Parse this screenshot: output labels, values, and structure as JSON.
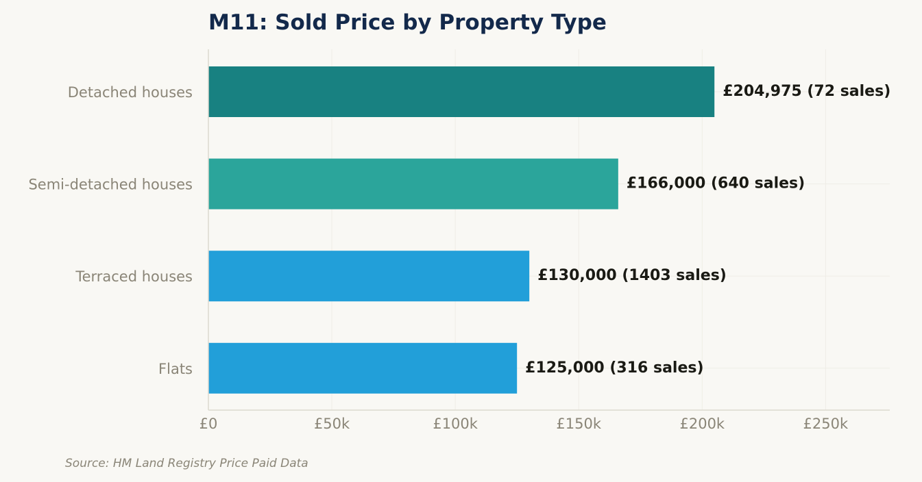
{
  "chart_data": {
    "type": "bar",
    "orientation": "horizontal",
    "title": "M11: Sold Price by Property Type",
    "xlabel": "",
    "ylabel": "",
    "categories": [
      "Detached houses",
      "Semi-detached houses",
      "Terraced houses",
      "Flats"
    ],
    "values": [
      204975,
      166000,
      130000,
      125000
    ],
    "sales": [
      72,
      640,
      1403,
      316
    ],
    "data_labels": [
      "£204,975  (72 sales)",
      "£166,000  (640 sales)",
      "£130,000  (1403 sales)",
      "£125,000  (316 sales)"
    ],
    "bar_colors": [
      "#188181",
      "#2ba59b",
      "#229fd9",
      "#229fd9"
    ],
    "xlim": [
      0,
      276000
    ],
    "xticks": [
      0,
      50000,
      100000,
      150000,
      200000,
      250000
    ],
    "xtick_labels": [
      "£0",
      "£50k",
      "£100k",
      "£150k",
      "£200k",
      "£250k"
    ],
    "grid": true,
    "source": "Source: HM Land Registry Price Paid Data"
  },
  "colors": {
    "title": "#13294b",
    "axis_text": "#8a8577",
    "data_label": "#1a1a14",
    "grid": "#efede6",
    "axis_line": "#dcd9cf",
    "background": "#f9f8f4"
  }
}
